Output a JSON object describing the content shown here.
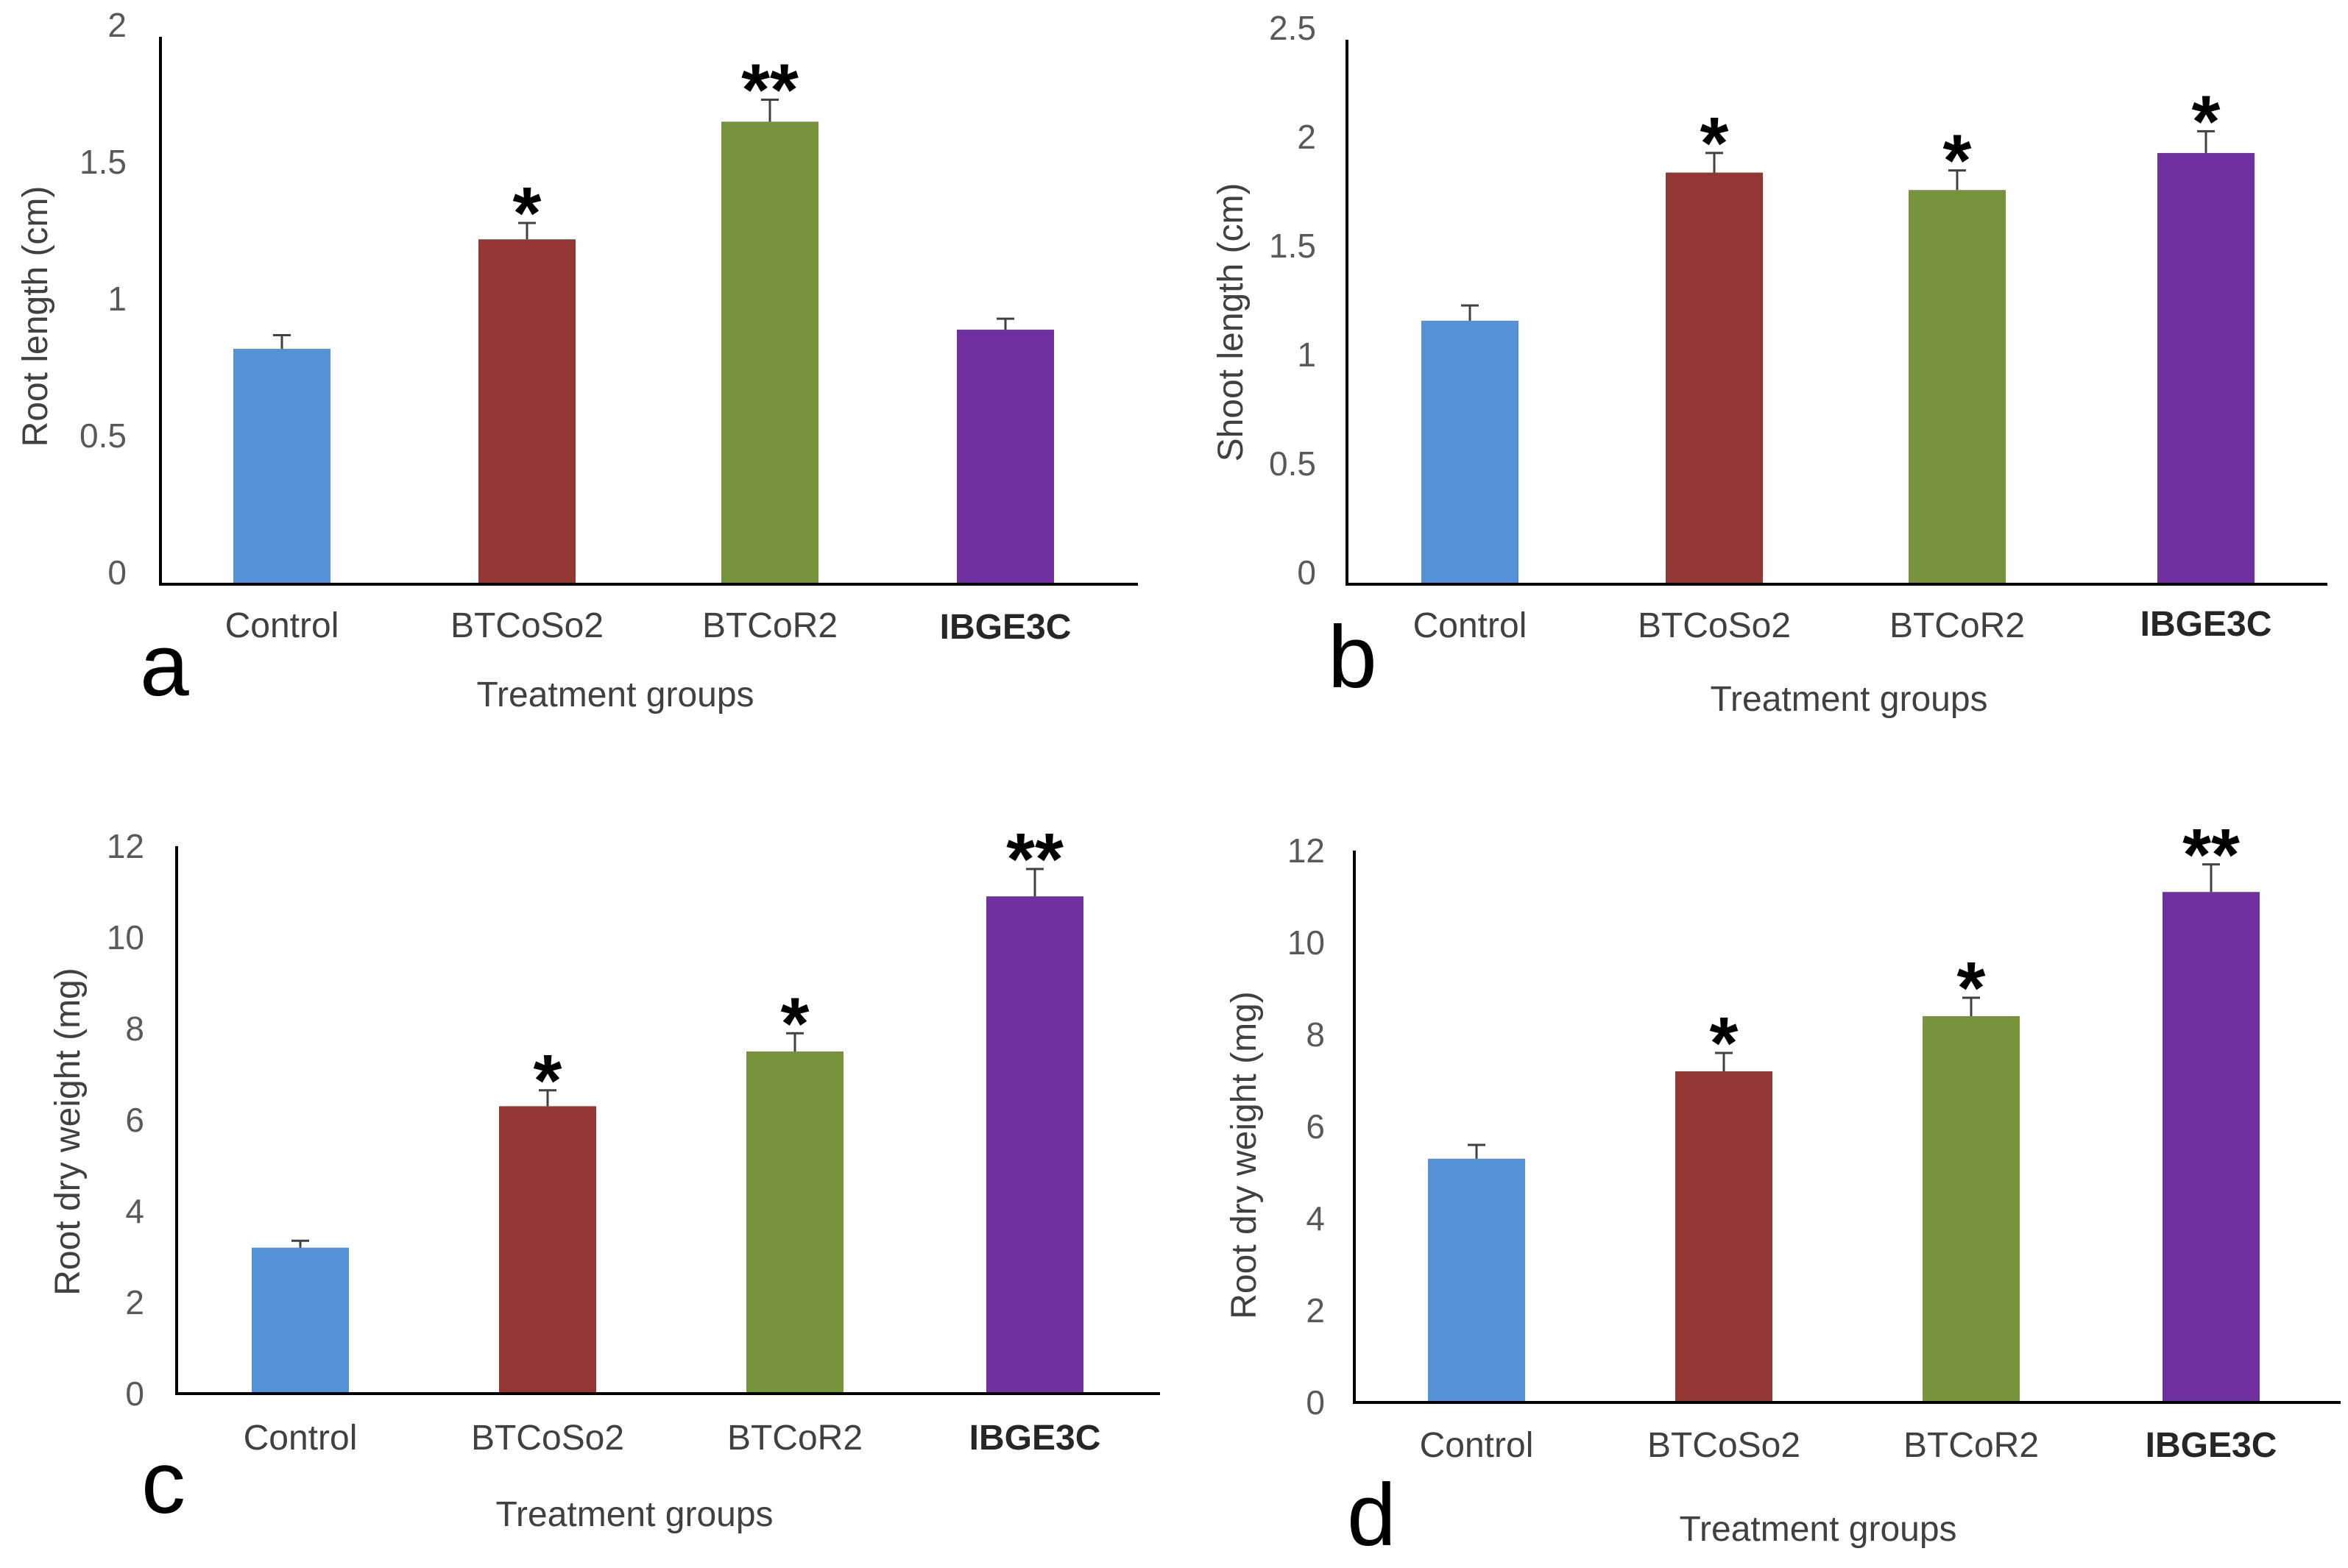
{
  "chart_data": [
    {
      "type": "bar",
      "panel": "a",
      "categories": [
        "Control",
        "BTCoSo2",
        "BTCoR2",
        "IBGE3C"
      ],
      "values": [
        0.86,
        1.26,
        1.69,
        0.93
      ],
      "errors": [
        0.05,
        0.06,
        0.08,
        0.04
      ],
      "significance": [
        "",
        "*",
        "**",
        ""
      ],
      "ylabel": "Root length (cm)",
      "xlabel": "Treatment groups",
      "ylim": [
        0,
        2
      ],
      "yticks": [
        "0",
        "0.5",
        "1",
        "1.5",
        "2"
      ],
      "grid": false
    },
    {
      "type": "bar",
      "panel": "b",
      "categories": [
        "Control",
        "BTCoSo2",
        "BTCoR2",
        "IBGE3C"
      ],
      "values": [
        1.21,
        1.89,
        1.81,
        1.98
      ],
      "errors": [
        0.07,
        0.09,
        0.09,
        0.1
      ],
      "significance": [
        "",
        "*",
        "*",
        "*"
      ],
      "ylabel": "Shoot length (cm)",
      "xlabel": "Treatment groups",
      "ylim": [
        0,
        2.5
      ],
      "yticks": [
        "0",
        "0.5",
        "1",
        "1.5",
        "2",
        "2.5"
      ],
      "grid": false
    },
    {
      "type": "bar",
      "panel": "c",
      "categories": [
        "Control",
        "BTCoSo2",
        "BTCoR2",
        "IBGE3C"
      ],
      "values": [
        3.2,
        6.3,
        7.5,
        10.9
      ],
      "errors": [
        0.15,
        0.35,
        0.4,
        0.6
      ],
      "significance": [
        "",
        "*",
        "*",
        "**"
      ],
      "ylabel": "Root dry weight  (mg)",
      "xlabel": "Treatment groups",
      "ylim": [
        0,
        12
      ],
      "yticks": [
        "0",
        "2",
        "4",
        "6",
        "8",
        "10",
        "12"
      ],
      "grid": false
    },
    {
      "type": "bar",
      "panel": "d",
      "categories": [
        "Control",
        "BTCoSo2",
        "BTCoR2",
        "IBGE3C"
      ],
      "values": [
        5.3,
        7.2,
        8.4,
        11.1
      ],
      "errors": [
        0.3,
        0.4,
        0.4,
        0.6
      ],
      "significance": [
        "",
        "*",
        "*",
        "**"
      ],
      "ylabel": "Root dry weight  (mg)",
      "xlabel": "Treatment groups",
      "ylim": [
        0,
        12
      ],
      "yticks": [
        "0",
        "2",
        "4",
        "6",
        "8",
        "10",
        "12"
      ],
      "grid": false
    }
  ],
  "colors": [
    "#5591d6",
    "#943634",
    "#77933c",
    "#7030a0"
  ]
}
